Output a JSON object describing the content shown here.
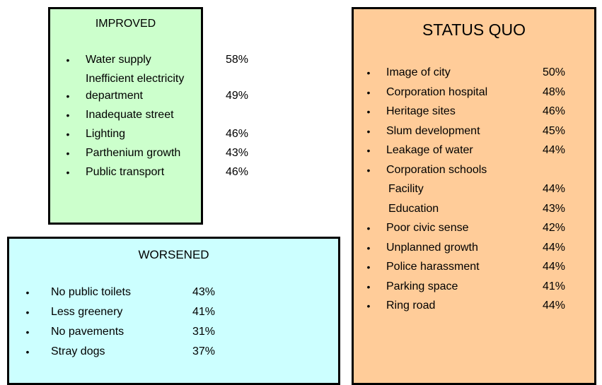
{
  "boxes": [
    {
      "title": "IMPROVED",
      "items": [
        {
          "text": "Water supply",
          "value": "58%"
        },
        {
          "text": "Inefficient electricity department",
          "value": "49%"
        },
        {
          "text": "Inadequate street"
        },
        {
          "text": "Lighting",
          "value": "46%"
        },
        {
          "text": "Parthenium growth",
          "value": "43%"
        },
        {
          "text": "Public transport",
          "value": "46%"
        }
      ]
    },
    {
      "title": "WORSENED",
      "items": [
        {
          "text": "No public toilets",
          "value": "43%"
        },
        {
          "text": "Less greenery",
          "value": "41%"
        },
        {
          "text": "No pavements",
          "value": "31%"
        },
        {
          "text": "Stray dogs",
          "value": "37%"
        }
      ]
    },
    {
      "title": "STATUS QUO",
      "items": [
        {
          "text": "Image of city",
          "value": "50%"
        },
        {
          "text": "Corporation hospital",
          "value": "48%"
        },
        {
          "text": "Heritage sites",
          "value": "46%"
        },
        {
          "text": "Slum development",
          "value": "45%"
        },
        {
          "text": "Leakage of water",
          "value": "44%"
        },
        {
          "text": "Corporation schools",
          "items": [
            {
              "text": "Facility",
              "value": "44%"
            },
            {
              "text": "Education",
              "value": "43%"
            }
          ]
        },
        {
          "text": "Poor civic sense",
          "value": "42%"
        },
        {
          "text": "Unplanned growth",
          "value": "44%"
        },
        {
          "text": "Police harassment",
          "value": "44%"
        },
        {
          "text": "Parking space",
          "value": "41%"
        },
        {
          "text": "Ring road",
          "value": "44%"
        }
      ]
    }
  ]
}
